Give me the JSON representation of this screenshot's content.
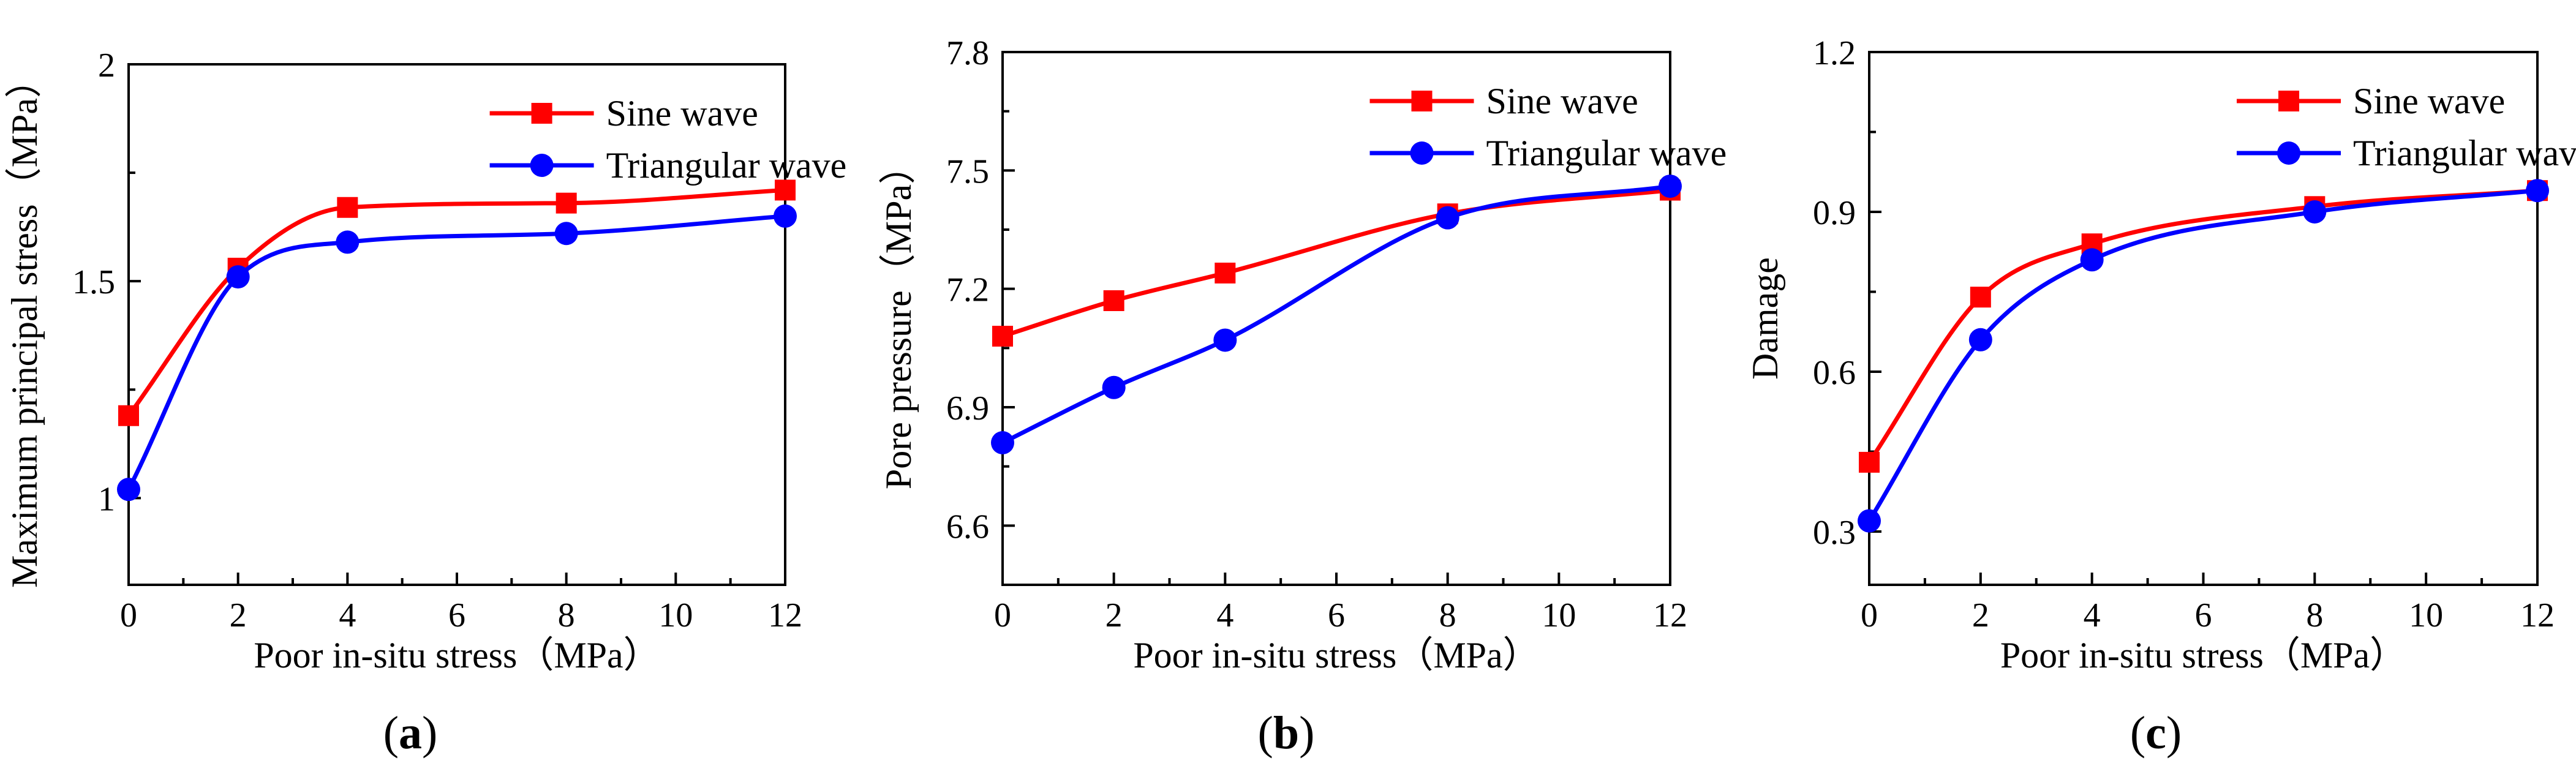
{
  "chart_data": [
    {
      "type": "line",
      "panel_label": "a",
      "xlabel": "Poor in-situ stress（MPa）",
      "ylabel": "Maximum principal stress（MPa）",
      "xlim": [
        0,
        12
      ],
      "ylim": [
        0.8,
        2.0
      ],
      "xticks": [
        0,
        2,
        4,
        6,
        8,
        10,
        12
      ],
      "xtick_labels": [
        "0",
        "2",
        "4",
        "6",
        "8",
        "10",
        "12"
      ],
      "yticks": [
        1.0,
        1.5,
        2.0
      ],
      "ytick_labels": [
        "1",
        "1.5",
        "2"
      ],
      "legend_position": "top-right",
      "series": [
        {
          "name": "Sine wave",
          "color": "#ff0000",
          "marker": "square",
          "x": [
            0,
            2,
            4,
            8,
            12
          ],
          "y": [
            1.19,
            1.53,
            1.67,
            1.68,
            1.71
          ]
        },
        {
          "name": "Triangular wave",
          "color": "#0000ff",
          "marker": "circle",
          "x": [
            0,
            2,
            4,
            8,
            12
          ],
          "y": [
            1.02,
            1.51,
            1.59,
            1.61,
            1.65
          ]
        }
      ]
    },
    {
      "type": "line",
      "panel_label": "b",
      "xlabel": "Poor in-situ stress（MPa）",
      "ylabel": "Pore pressure（MPa）",
      "xlim": [
        0,
        12
      ],
      "ylim": [
        6.45,
        7.8
      ],
      "xticks": [
        0,
        2,
        4,
        6,
        8,
        10,
        12
      ],
      "xtick_labels": [
        "0",
        "2",
        "4",
        "6",
        "8",
        "10",
        "12"
      ],
      "yticks": [
        6.6,
        6.9,
        7.2,
        7.5,
        7.8
      ],
      "ytick_labels": [
        "6.6",
        "6.9",
        "7.2",
        "7.5",
        "7.8"
      ],
      "legend_position": "top-right",
      "series": [
        {
          "name": "Sine wave",
          "color": "#ff0000",
          "marker": "square",
          "x": [
            0,
            2,
            4,
            8,
            12
          ],
          "y": [
            7.08,
            7.17,
            7.24,
            7.39,
            7.45
          ]
        },
        {
          "name": "Triangular wave",
          "color": "#0000ff",
          "marker": "circle",
          "x": [
            0,
            2,
            4,
            8,
            12
          ],
          "y": [
            6.81,
            6.95,
            7.07,
            7.38,
            7.46
          ]
        }
      ]
    },
    {
      "type": "line",
      "panel_label": "c",
      "xlabel": "Poor in-situ stress（MPa）",
      "ylabel": "Damage",
      "xlim": [
        0,
        12
      ],
      "ylim": [
        0.2,
        1.2
      ],
      "xticks": [
        0,
        2,
        4,
        6,
        8,
        10,
        12
      ],
      "xtick_labels": [
        "0",
        "2",
        "4",
        "6",
        "8",
        "10",
        "12"
      ],
      "yticks": [
        0.3,
        0.6,
        0.9,
        1.2
      ],
      "ytick_labels": [
        "0.3",
        "0.6",
        "0.9",
        "1.2"
      ],
      "legend_position": "top-right",
      "series": [
        {
          "name": "Sine wave",
          "color": "#ff0000",
          "marker": "square",
          "x": [
            0,
            2,
            4,
            8,
            12
          ],
          "y": [
            0.43,
            0.74,
            0.84,
            0.91,
            0.94
          ]
        },
        {
          "name": "Triangular wave",
          "color": "#0000ff",
          "marker": "circle",
          "x": [
            0,
            2,
            4,
            8,
            12
          ],
          "y": [
            0.32,
            0.66,
            0.81,
            0.9,
            0.94
          ]
        }
      ]
    }
  ]
}
